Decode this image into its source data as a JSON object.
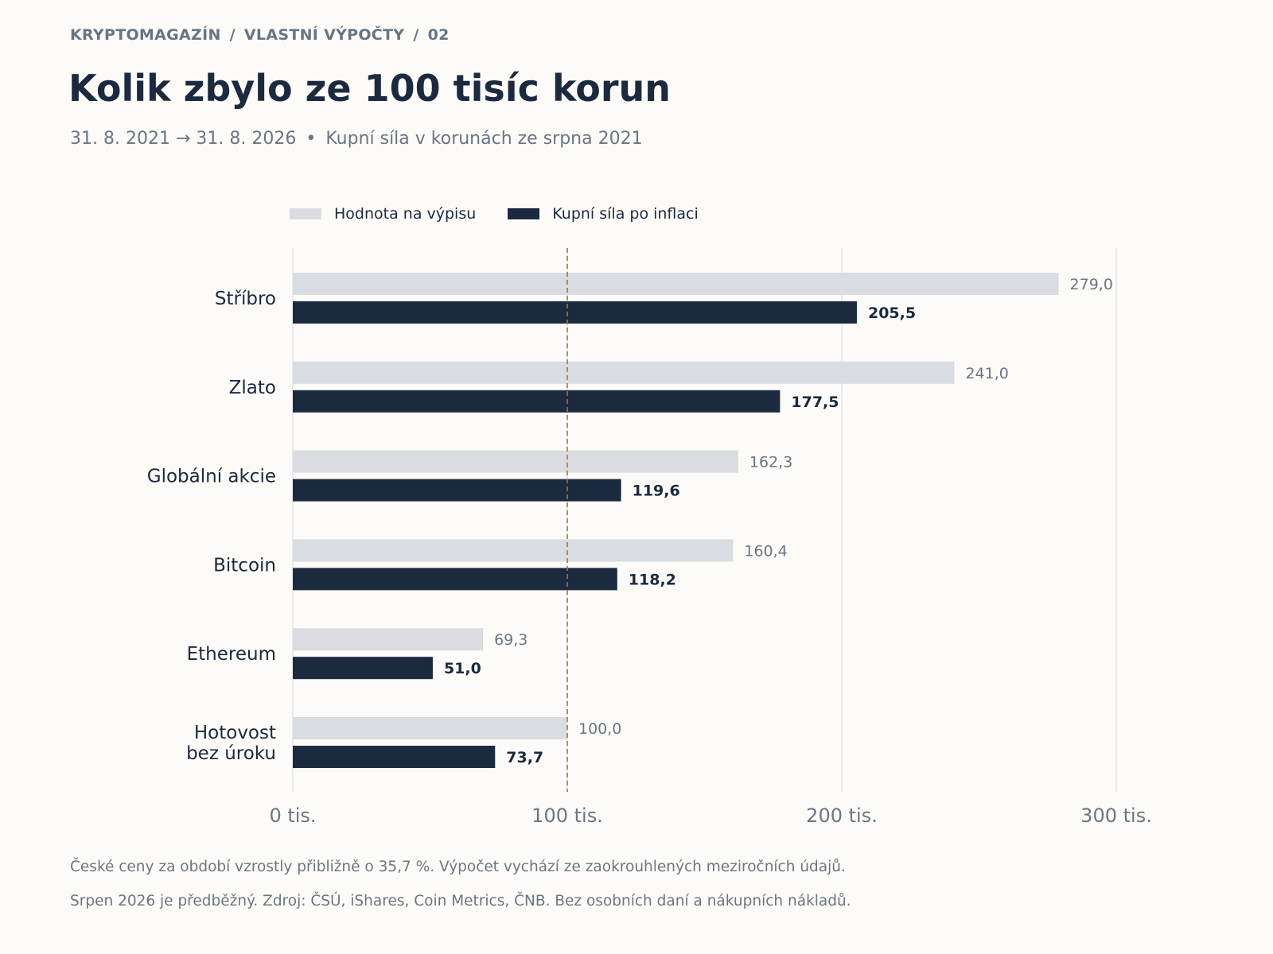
{
  "header": {
    "breadcrumb": [
      "KRYPTOMAGAZÍN",
      "VLASTNÍ VÝPOČTY",
      "02"
    ],
    "title": "Kolik zbylo ze 100 tisíc korun",
    "subtitle_period": "31. 8. 2021 → 31. 8. 2026",
    "subtitle_sep": "•",
    "subtitle_note": "Kupní síla v korunách ze srpna 2021"
  },
  "chart_data": {
    "type": "bar",
    "orientation": "horizontal",
    "categories": [
      "Stříbro",
      "Zlato",
      "Globální akcie",
      "Bitcoin",
      "Ethereum",
      "Hotovost bez úroku"
    ],
    "series": [
      {
        "name": "Hodnota na výpisu",
        "values": [
          279.0,
          241.0,
          162.3,
          160.4,
          69.3,
          100.0
        ],
        "color": "#d9dce1"
      },
      {
        "name": "Kupní síla po inflaci",
        "values": [
          205.5,
          177.5,
          119.6,
          118.2,
          51.0,
          73.7
        ],
        "color": "#1b2a3f"
      }
    ],
    "value_labels": [
      [
        "279,0",
        "241,0",
        "162,3",
        "160,4",
        "69,3",
        "100,0"
      ],
      [
        "205,5",
        "177,5",
        "119,6",
        "118,2",
        "51,0",
        "73,7"
      ]
    ],
    "x_ticks": [
      0,
      100,
      200,
      300
    ],
    "x_tick_labels": [
      "0 tis.",
      "100 tis.",
      "200 tis.",
      "300 tis."
    ],
    "xlim": [
      0,
      330
    ],
    "reference_line": {
      "value": 100,
      "color": "#a07a2c"
    },
    "grid": true,
    "legend_position": "top-left"
  },
  "footnotes": [
    "České ceny za období vzrostly přibližně o 35,7 %. Výpočet vychází ze zaokrouhlených meziročních údajů.",
    "Srpen 2026 je předběžný. Zdroj: ČSÚ, iShares, Coin Metrics, ČNB. Bez osobních daní a nákupních nákladů."
  ]
}
